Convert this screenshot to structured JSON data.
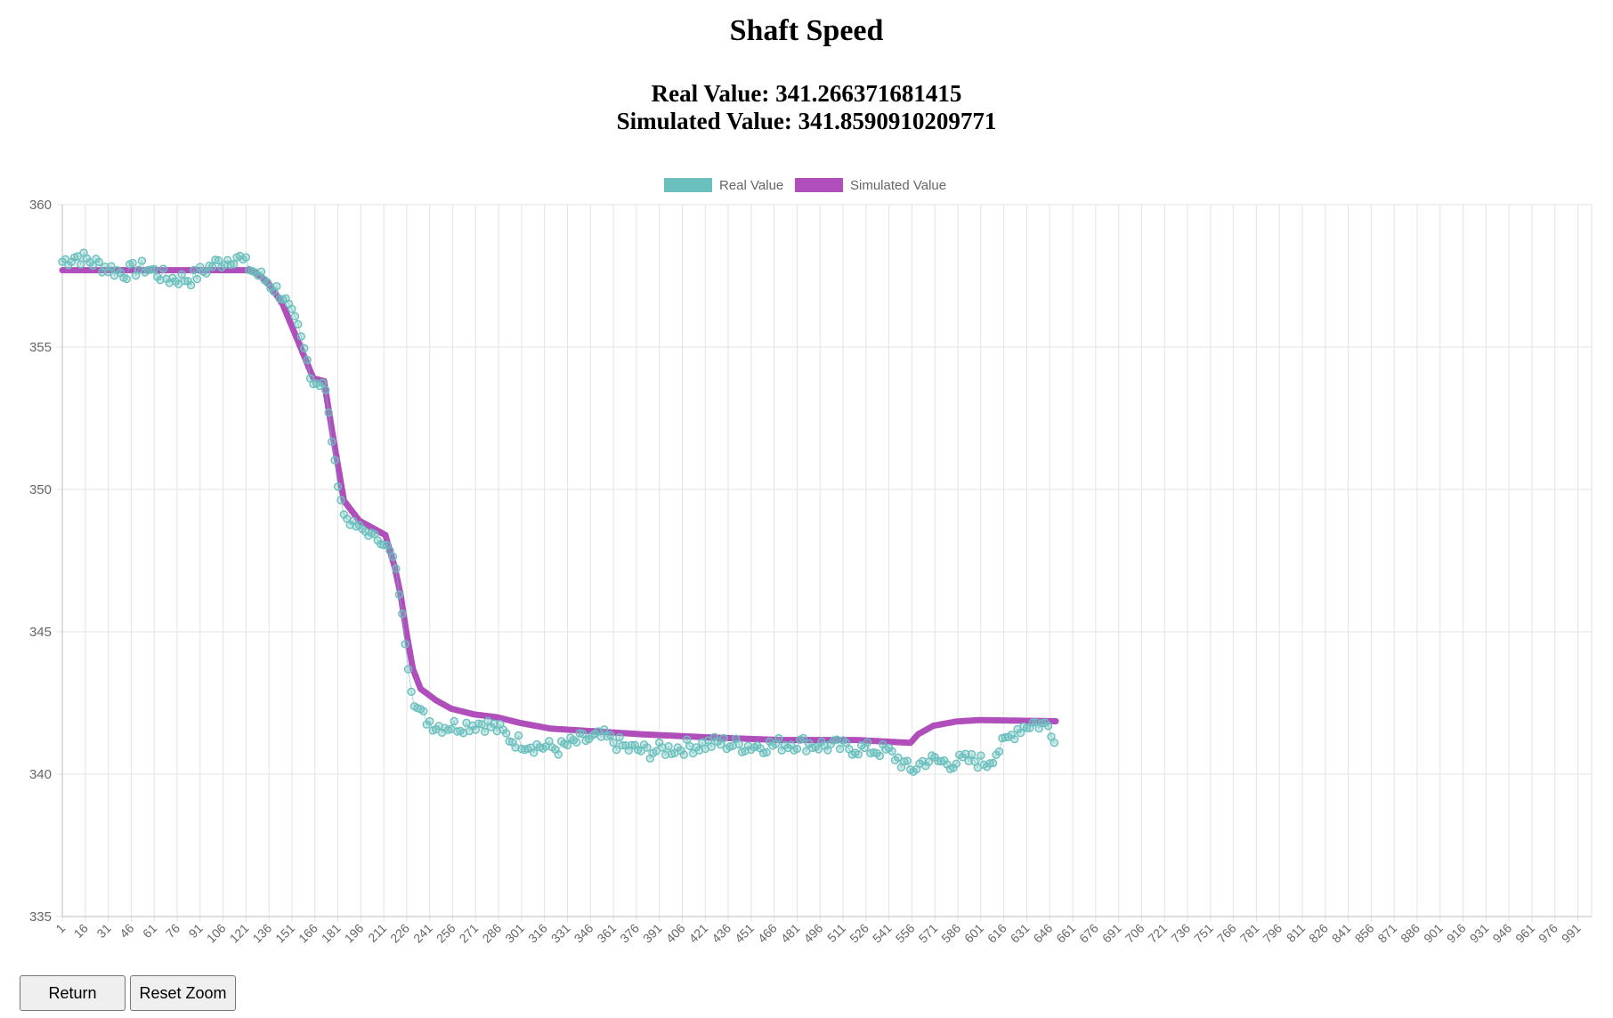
{
  "page": {
    "title": "Shaft Speed",
    "real_value_text": "Real Value: 341.266371681415",
    "simulated_value_text": "Simulated Value: 341.8590910209771"
  },
  "buttons": {
    "return_label": "Return",
    "reset_zoom_label": "Reset Zoom"
  },
  "chart_data": {
    "type": "line",
    "title": "",
    "xlabel": "",
    "ylabel": "",
    "ylim": [
      335,
      360
    ],
    "yticks": [
      335,
      340,
      345,
      350,
      355,
      360
    ],
    "xlim": [
      1,
      1000
    ],
    "xtick_start": 1,
    "xtick_step": 15,
    "xtick_end": 991,
    "grid": true,
    "legend_position": "top-center",
    "series": [
      {
        "name": "Real Value",
        "color": "#6bbfbd",
        "style": "points",
        "anchors": [
          [
            1,
            358.0
          ],
          [
            10,
            358.2
          ],
          [
            25,
            357.9
          ],
          [
            40,
            357.6
          ],
          [
            55,
            357.8
          ],
          [
            70,
            357.4
          ],
          [
            85,
            357.4
          ],
          [
            100,
            357.9
          ],
          [
            115,
            358.2
          ],
          [
            125,
            357.7
          ],
          [
            135,
            357.3
          ],
          [
            145,
            356.8
          ],
          [
            155,
            355.6
          ],
          [
            165,
            353.8
          ],
          [
            172,
            353.8
          ],
          [
            180,
            350.5
          ],
          [
            185,
            349.1
          ],
          [
            190,
            348.8
          ],
          [
            200,
            348.5
          ],
          [
            212,
            348.1
          ],
          [
            218,
            347.5
          ],
          [
            222,
            346.0
          ],
          [
            226,
            344.2
          ],
          [
            230,
            342.6
          ],
          [
            235,
            342.1
          ],
          [
            245,
            341.7
          ],
          [
            260,
            341.7
          ],
          [
            275,
            341.8
          ],
          [
            285,
            341.6
          ],
          [
            295,
            341.2
          ],
          [
            310,
            341.0
          ],
          [
            325,
            340.9
          ],
          [
            340,
            341.2
          ],
          [
            355,
            341.3
          ],
          [
            370,
            340.9
          ],
          [
            385,
            340.8
          ],
          [
            400,
            340.9
          ],
          [
            415,
            341.0
          ],
          [
            430,
            341.1
          ],
          [
            445,
            341.0
          ],
          [
            460,
            341.0
          ],
          [
            480,
            341.1
          ],
          [
            500,
            341.0
          ],
          [
            520,
            340.9
          ],
          [
            540,
            340.8
          ],
          [
            548,
            340.5
          ],
          [
            555,
            340.1
          ],
          [
            565,
            340.5
          ],
          [
            580,
            340.4
          ],
          [
            595,
            340.5
          ],
          [
            605,
            340.4
          ],
          [
            615,
            341.0
          ],
          [
            625,
            341.6
          ],
          [
            635,
            341.8
          ],
          [
            645,
            341.7
          ],
          [
            650,
            341.3
          ]
        ]
      },
      {
        "name": "Simulated Value",
        "color": "#b04fbb",
        "style": "line",
        "anchors": [
          [
            1,
            357.7
          ],
          [
            125,
            357.7
          ],
          [
            135,
            357.3
          ],
          [
            145,
            356.5
          ],
          [
            155,
            355.2
          ],
          [
            165,
            353.9
          ],
          [
            172,
            353.8
          ],
          [
            178,
            351.8
          ],
          [
            185,
            349.6
          ],
          [
            195,
            348.9
          ],
          [
            212,
            348.4
          ],
          [
            218,
            347.3
          ],
          [
            222,
            346.3
          ],
          [
            226,
            344.9
          ],
          [
            230,
            343.7
          ],
          [
            235,
            343.0
          ],
          [
            245,
            342.6
          ],
          [
            255,
            342.3
          ],
          [
            270,
            342.1
          ],
          [
            285,
            342.0
          ],
          [
            300,
            341.8
          ],
          [
            320,
            341.6
          ],
          [
            350,
            341.5
          ],
          [
            380,
            341.4
          ],
          [
            420,
            341.3
          ],
          [
            470,
            341.2
          ],
          [
            520,
            341.2
          ],
          [
            555,
            341.1
          ],
          [
            560,
            341.4
          ],
          [
            570,
            341.7
          ],
          [
            585,
            341.85
          ],
          [
            600,
            341.9
          ],
          [
            650,
            341.86
          ]
        ]
      }
    ]
  }
}
